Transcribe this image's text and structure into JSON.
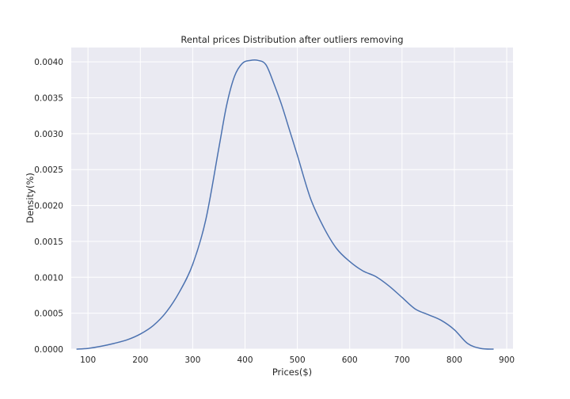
{
  "chart_data": {
    "type": "line",
    "title": "Rental prices Distribution after outliers removing",
    "xlabel": "Prices($)",
    "ylabel": "Density(%)",
    "xlim": [
      68,
      912
    ],
    "ylim": [
      0,
      0.0042
    ],
    "grid": true,
    "x_ticks": [
      {
        "value": 100,
        "label": "100"
      },
      {
        "value": 200,
        "label": "200"
      },
      {
        "value": 300,
        "label": "300"
      },
      {
        "value": 400,
        "label": "400"
      },
      {
        "value": 500,
        "label": "500"
      },
      {
        "value": 600,
        "label": "600"
      },
      {
        "value": 700,
        "label": "700"
      },
      {
        "value": 800,
        "label": "800"
      },
      {
        "value": 900,
        "label": "900"
      }
    ],
    "y_ticks": [
      {
        "value": 0.0,
        "label": "0.0000"
      },
      {
        "value": 0.0005,
        "label": "0.0005"
      },
      {
        "value": 0.001,
        "label": "0.0010"
      },
      {
        "value": 0.0015,
        "label": "0.0015"
      },
      {
        "value": 0.002,
        "label": "0.0020"
      },
      {
        "value": 0.0025,
        "label": "0.0025"
      },
      {
        "value": 0.003,
        "label": "0.0030"
      },
      {
        "value": 0.0035,
        "label": "0.0035"
      },
      {
        "value": 0.004,
        "label": "0.0040"
      }
    ],
    "series": [
      {
        "color": "#4c72b0",
        "x": [
          78,
          100,
          125,
          150,
          175,
          200,
          225,
          250,
          275,
          300,
          325,
          350,
          365,
          380,
          395,
          410,
          425,
          440,
          455,
          470,
          485,
          500,
          525,
          550,
          575,
          600,
          625,
          650,
          675,
          700,
          725,
          750,
          775,
          800,
          825,
          850,
          875
        ],
        "y": [
          0.0,
          1e-05,
          4e-05,
          8e-05,
          0.00013,
          0.00021,
          0.00033,
          0.00052,
          0.0008,
          0.00118,
          0.0018,
          0.0028,
          0.0034,
          0.0038,
          0.00398,
          0.00402,
          0.00402,
          0.00396,
          0.0037,
          0.0034,
          0.00305,
          0.0027,
          0.0021,
          0.0017,
          0.0014,
          0.00122,
          0.00109,
          0.00101,
          0.00088,
          0.00072,
          0.00056,
          0.00048,
          0.0004,
          0.00027,
          8e-05,
          1e-05,
          0.0
        ]
      }
    ]
  }
}
